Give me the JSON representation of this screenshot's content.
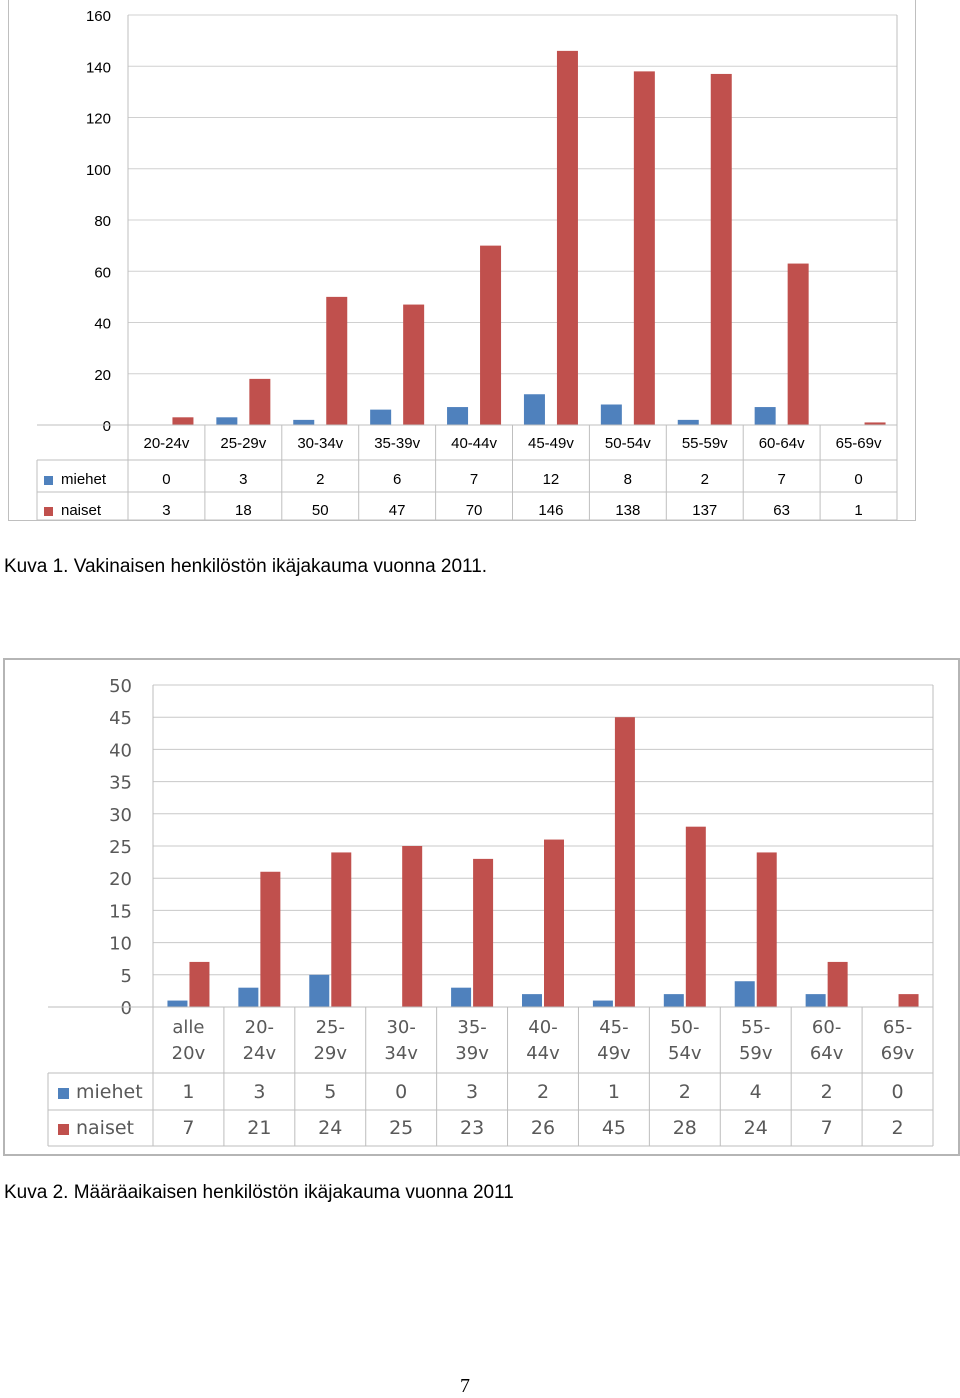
{
  "chart_data": [
    {
      "type": "bar",
      "categories": [
        "20-24v",
        "25-29v",
        "30-34v",
        "35-39v",
        "40-44v",
        "45-49v",
        "50-54v",
        "55-59v",
        "60-64v",
        "65-69v"
      ],
      "series": [
        {
          "name": "miehet",
          "values": [
            0,
            3,
            2,
            6,
            7,
            12,
            8,
            2,
            7,
            0
          ],
          "color": "#4f81bd"
        },
        {
          "name": "naiset",
          "values": [
            3,
            18,
            50,
            47,
            70,
            146,
            138,
            137,
            63,
            1
          ],
          "color": "#c0504d"
        }
      ],
      "yticks": [
        0,
        20,
        40,
        60,
        80,
        100,
        120,
        140,
        160
      ],
      "ylim": [
        0,
        160
      ],
      "grid": true,
      "legend": "data-table"
    },
    {
      "type": "bar",
      "categories": [
        "alle 20v",
        "20- 24v",
        "25- 29v",
        "30- 34v",
        "35- 39v",
        "40- 44v",
        "45- 49v",
        "50- 54v",
        "55- 59v",
        "60- 64v",
        "65- 69v"
      ],
      "series": [
        {
          "name": "miehet",
          "values": [
            1,
            3,
            5,
            0,
            3,
            2,
            1,
            2,
            4,
            2,
            0
          ],
          "color": "#4f81bd"
        },
        {
          "name": "naiset",
          "values": [
            7,
            21,
            24,
            25,
            23,
            26,
            45,
            28,
            24,
            7,
            2
          ],
          "color": "#c0504d"
        }
      ],
      "yticks": [
        0,
        5,
        10,
        15,
        20,
        25,
        30,
        35,
        40,
        45,
        50
      ],
      "ylim": [
        0,
        50
      ],
      "grid": true,
      "legend": "data-table"
    }
  ],
  "captions": {
    "caption1": "Kuva 1.  Vakinaisen henkilöstön ikäjakauma vuonna 2011.",
    "caption2": "Kuva 2.  Määräaikaisen henkilöstön ikäjakauma vuonna 2011"
  },
  "page_number": "7"
}
